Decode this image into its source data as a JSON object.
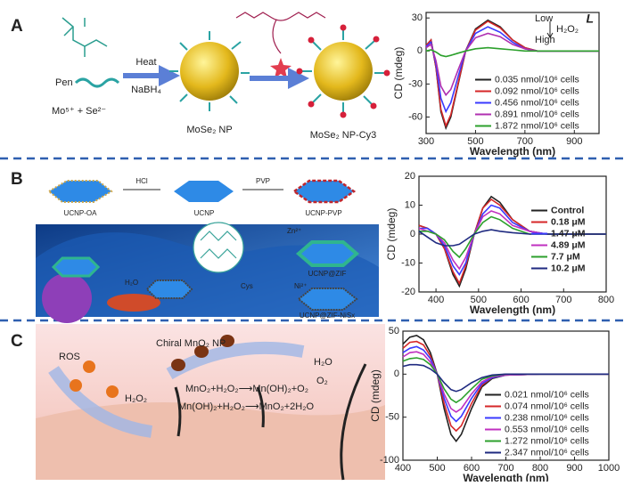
{
  "panel_a": {
    "label": "A",
    "pen": "Pen",
    "ions": "Mo⁵⁺ + Se²⁻",
    "heat": "Heat",
    "reductant": "NaBH₄",
    "np": "MoSe₂ NP",
    "np_cy3": "MoSe₂ NP-Cy3"
  },
  "panel_b": {
    "label": "B",
    "oa": "UCNP-OA",
    "hcl": "HCl",
    "ucnp": "UCNP",
    "pvp": "PVP",
    "ucnp_pvp": "UCNP-PVP",
    "zn": "Zn²⁺",
    "zif": "UCNP@ZIF",
    "cys": "Cys",
    "ni": "Ni²⁺",
    "nisx": "UCNP@ZIF-NiSx",
    "water": "H₂O"
  },
  "panel_c": {
    "label": "C",
    "ros": "ROS",
    "np": "Chiral MnO₂ NP",
    "water": "H₂O",
    "oxygen": "O₂",
    "peroxide": "H₂O₂",
    "reaction_1": "MnO₂+H₂O₂⟶Mn(OH)₂+O₂",
    "reaction_2": "Mn(OH)₂+H₂O₂⟶MnO₂+2H₂O"
  },
  "chart_data": [
    {
      "type": "line",
      "xlabel": "Wavelength (nm)",
      "ylabel": "CD (mdeg)",
      "annotations": [
        "Low",
        "H₂O₂",
        "High",
        "L"
      ],
      "x": [
        300,
        320,
        340,
        360,
        380,
        400,
        430,
        460,
        500,
        550,
        600,
        650,
        700,
        750,
        800,
        900,
        1000
      ],
      "xlim": [
        300,
        1000
      ],
      "xticks": [
        300,
        500,
        700,
        900
      ],
      "ylim": [
        -75,
        35
      ],
      "yticks": [
        -60,
        -30,
        0,
        30
      ],
      "legend": "lower right",
      "series": [
        {
          "name": "0.035 nmol/10⁶ cells",
          "color": "#222222",
          "values": [
            5,
            10,
            -15,
            -55,
            -70,
            -60,
            -30,
            0,
            20,
            28,
            22,
            10,
            3,
            0,
            0,
            0,
            0
          ]
        },
        {
          "name": "0.092 nmol/10⁶ cells",
          "color": "#d62728",
          "values": [
            5,
            10,
            -15,
            -53,
            -68,
            -58,
            -29,
            0,
            19,
            27,
            21,
            10,
            3,
            0,
            0,
            0,
            0
          ]
        },
        {
          "name": "0.456 nmol/10⁶ cells",
          "color": "#3a3aff",
          "values": [
            4,
            8,
            -12,
            -43,
            -55,
            -47,
            -23,
            0,
            16,
            22,
            17,
            8,
            2,
            0,
            0,
            0,
            0
          ]
        },
        {
          "name": "0.891 nmol/10⁶ cells",
          "color": "#b030b0",
          "values": [
            3,
            6,
            -9,
            -32,
            -40,
            -35,
            -17,
            0,
            12,
            16,
            13,
            6,
            2,
            0,
            0,
            0,
            0
          ]
        },
        {
          "name": "1.872 nmol/10⁶ cells",
          "color": "#2ca02c",
          "values": [
            0,
            1,
            -1,
            -4,
            -5,
            -4,
            -2,
            0,
            2,
            3,
            2,
            1,
            0,
            0,
            0,
            0,
            0
          ]
        }
      ]
    },
    {
      "type": "line",
      "xlabel": "Wavelength (nm)",
      "ylabel": "CD (mdeg)",
      "x": [
        360,
        380,
        400,
        420,
        440,
        455,
        470,
        490,
        510,
        530,
        550,
        580,
        620,
        660,
        700,
        750,
        800
      ],
      "xlim": [
        360,
        800
      ],
      "xticks": [
        400,
        500,
        600,
        700,
        800
      ],
      "ylim": [
        -20,
        20
      ],
      "yticks": [
        -20,
        -10,
        0,
        10,
        20
      ],
      "legend": "center right",
      "series": [
        {
          "name": "Control",
          "color": "#222222",
          "values": [
            3,
            2,
            0,
            -5,
            -14,
            -18,
            -12,
            0,
            9,
            13,
            11,
            5,
            1,
            0,
            0,
            0,
            0
          ]
        },
        {
          "name": "0.18 μM",
          "color": "#d62728",
          "values": [
            3,
            2,
            0,
            -5,
            -13,
            -17,
            -11,
            0,
            9,
            12,
            10,
            5,
            1,
            0,
            0,
            0,
            0
          ]
        },
        {
          "name": "1.47 μM",
          "color": "#3a3aff",
          "values": [
            2,
            2,
            0,
            -4,
            -11,
            -14,
            -10,
            0,
            7,
            10,
            9,
            4,
            1,
            0,
            0,
            0,
            0
          ]
        },
        {
          "name": "4.89 μM",
          "color": "#c030c0",
          "values": [
            2,
            1,
            0,
            -3,
            -9,
            -12,
            -8,
            0,
            6,
            8,
            7,
            3,
            1,
            0,
            0,
            0,
            0
          ]
        },
        {
          "name": "7.7 μM",
          "color": "#2ca02c",
          "values": [
            1,
            1,
            0,
            -2,
            -6,
            -8,
            -5,
            0,
            4,
            6,
            5,
            2,
            0,
            0,
            0,
            0,
            0
          ]
        },
        {
          "name": "10.2 μM",
          "color": "#1f2a80",
          "values": [
            1,
            -1,
            -3,
            -4,
            -4,
            -3.5,
            -2,
            0,
            1,
            1.5,
            1,
            0.5,
            0,
            0,
            0,
            0,
            0
          ]
        }
      ]
    },
    {
      "type": "line",
      "xlabel": "Wavelength (nm)",
      "ylabel": "CD (mdeg)",
      "x": [
        400,
        420,
        440,
        460,
        480,
        500,
        520,
        540,
        555,
        570,
        600,
        630,
        660,
        700,
        800,
        900,
        1000
      ],
      "xlim": [
        400,
        1000
      ],
      "xticks": [
        400,
        500,
        600,
        700,
        800,
        900,
        1000
      ],
      "ylim": [
        -100,
        50
      ],
      "yticks": [
        -100,
        -50,
        0,
        50
      ],
      "legend": "lower right",
      "series": [
        {
          "name": "0.021 nmol/10⁶ cells",
          "color": "#222222",
          "values": [
            35,
            43,
            45,
            40,
            25,
            0,
            -40,
            -70,
            -78,
            -70,
            -40,
            -15,
            -5,
            -1,
            0,
            0,
            0
          ]
        },
        {
          "name": "0.074 nmol/10⁶ cells",
          "color": "#d62728",
          "values": [
            30,
            37,
            38,
            34,
            21,
            0,
            -34,
            -60,
            -66,
            -60,
            -34,
            -13,
            -4,
            -1,
            0,
            0,
            0
          ]
        },
        {
          "name": "0.238 nmol/10⁶ cells",
          "color": "#3a3aff",
          "values": [
            25,
            30,
            32,
            28,
            18,
            0,
            -28,
            -49,
            -55,
            -49,
            -28,
            -11,
            -4,
            -1,
            0,
            0,
            0
          ]
        },
        {
          "name": "0.553 nmol/10⁶ cells",
          "color": "#c030c0",
          "values": [
            20,
            25,
            26,
            23,
            14,
            0,
            -23,
            -40,
            -44,
            -40,
            -23,
            -9,
            -3,
            -1,
            0,
            0,
            0
          ]
        },
        {
          "name": "1.272 nmol/10⁶ cells",
          "color": "#2ca02c",
          "values": [
            15,
            18,
            19,
            17,
            11,
            0,
            -17,
            -29,
            -33,
            -29,
            -17,
            -6,
            -2,
            0,
            0,
            0,
            0
          ]
        },
        {
          "name": "2.347 nmol/10⁶ cells",
          "color": "#1f2a80",
          "values": [
            9,
            11,
            11,
            10,
            6,
            0,
            -10,
            -18,
            -20,
            -18,
            -10,
            -4,
            -1,
            0,
            0,
            0,
            0
          ]
        }
      ]
    }
  ]
}
